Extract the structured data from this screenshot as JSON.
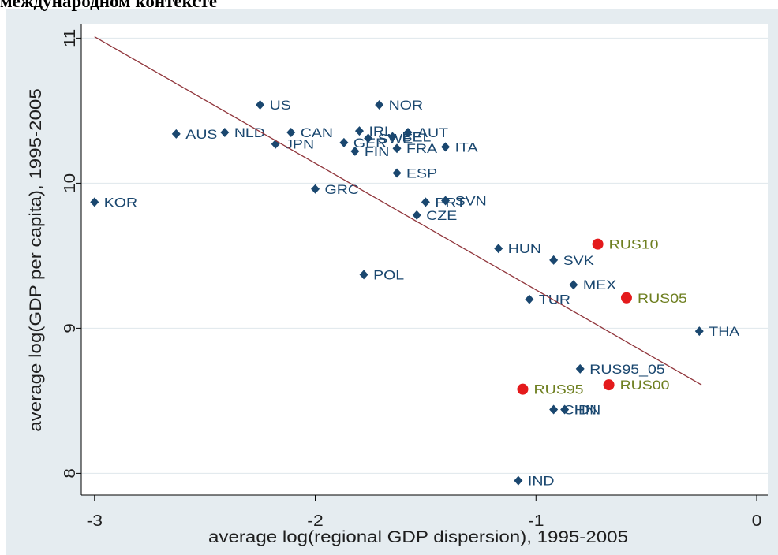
{
  "heading": "международном контексте",
  "chart_data": {
    "type": "scatter",
    "xlabel": "average log(regional GDP dispersion), 1995-2005",
    "ylabel": "average log(GDP per capita), 1995-2005",
    "xlim": [
      -3.06,
      0.05
    ],
    "ylim": [
      7.85,
      11.1
    ],
    "x_ticks": [
      {
        "value": -3,
        "label": "-3"
      },
      {
        "value": -2,
        "label": "-2"
      },
      {
        "value": -1,
        "label": "-1"
      },
      {
        "value": 0,
        "label": "0"
      }
    ],
    "y_ticks": [
      {
        "value": 8,
        "label": "8"
      },
      {
        "value": 9,
        "label": "9"
      },
      {
        "value": 10,
        "label": "10"
      },
      {
        "value": 11,
        "label": "11"
      }
    ],
    "grid": "horizontal",
    "legend": "none",
    "background": "#e5ecf0",
    "plot_background": "#ffffff",
    "grid_color": "#dfe7eb",
    "series": [
      {
        "marker": "diamond",
        "color": "#1a476f",
        "label_color": "#1a476f",
        "points": [
          {
            "label": "KOR",
            "x": -3.0,
            "y": 9.87
          },
          {
            "label": "AUS",
            "x": -2.63,
            "y": 10.34
          },
          {
            "label": "NLD",
            "x": -2.41,
            "y": 10.35
          },
          {
            "label": "US",
            "x": -2.25,
            "y": 10.54
          },
          {
            "label": "JPN",
            "x": -2.18,
            "y": 10.27
          },
          {
            "label": "CAN",
            "x": -2.11,
            "y": 10.35
          },
          {
            "label": "GRC",
            "x": -2.0,
            "y": 9.96
          },
          {
            "label": "GER",
            "x": -1.87,
            "y": 10.28
          },
          {
            "label": "FIN",
            "x": -1.82,
            "y": 10.22
          },
          {
            "label": "IRL",
            "x": -1.8,
            "y": 10.36
          },
          {
            "label": "POL",
            "x": -1.78,
            "y": 9.37
          },
          {
            "label": "SWE",
            "x": -1.76,
            "y": 10.31
          },
          {
            "label": "NOR",
            "x": -1.71,
            "y": 10.54
          },
          {
            "label": "BEL",
            "x": -1.65,
            "y": 10.32
          },
          {
            "label": "ESP",
            "x": -1.63,
            "y": 10.07
          },
          {
            "label": "FRA",
            "x": -1.63,
            "y": 10.24
          },
          {
            "label": "AUT",
            "x": -1.58,
            "y": 10.35
          },
          {
            "label": "CZE",
            "x": -1.54,
            "y": 9.78
          },
          {
            "label": "PRT",
            "x": -1.5,
            "y": 9.87
          },
          {
            "label": "ITA",
            "x": -1.41,
            "y": 10.25
          },
          {
            "label": "SVN",
            "x": -1.41,
            "y": 9.88
          },
          {
            "label": "HUN",
            "x": -1.17,
            "y": 9.55
          },
          {
            "label": "IND",
            "x": -1.08,
            "y": 7.95
          },
          {
            "label": "TUR",
            "x": -1.03,
            "y": 9.2
          },
          {
            "label": "CHN",
            "x": -0.92,
            "y": 8.44
          },
          {
            "label": "SVK",
            "x": -0.92,
            "y": 9.47
          },
          {
            "label": "IDN",
            "x": -0.87,
            "y": 8.44
          },
          {
            "label": "MEX",
            "x": -0.83,
            "y": 9.3
          },
          {
            "label": "RUS95_05",
            "x": -0.8,
            "y": 8.72
          },
          {
            "label": "THA",
            "x": -0.26,
            "y": 8.98
          }
        ]
      },
      {
        "marker": "circle",
        "color": "#e41a1c",
        "label_color": "#6e7f20",
        "points": [
          {
            "label": "RUS95",
            "x": -1.06,
            "y": 8.58
          },
          {
            "label": "RUS10",
            "x": -0.72,
            "y": 9.58
          },
          {
            "label": "RUS00",
            "x": -0.67,
            "y": 8.61
          },
          {
            "label": "RUS05",
            "x": -0.59,
            "y": 9.21
          }
        ]
      }
    ],
    "fit_line": {
      "color": "#90353b",
      "x": [
        -3.0,
        -0.25
      ],
      "y": [
        11.01,
        8.61
      ]
    }
  }
}
